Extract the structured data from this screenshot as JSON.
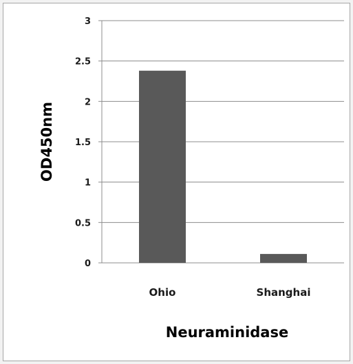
{
  "chart_data": {
    "type": "bar",
    "categories": [
      "Ohio",
      "Shanghai"
    ],
    "values": [
      2.38,
      0.11
    ],
    "xlabel": "Neuraminidase",
    "ylabel": "OD450nm",
    "ylim": [
      0,
      3
    ],
    "yticks": [
      0,
      0.5,
      1,
      1.5,
      2,
      2.5,
      3
    ],
    "ytick_labels": [
      "0",
      "0.5",
      "1",
      "1.5",
      "2",
      "2.5",
      "3"
    ],
    "grid": true,
    "legend": "none",
    "bar_color": "#595959",
    "gridline_color": "#8c8c8c"
  }
}
